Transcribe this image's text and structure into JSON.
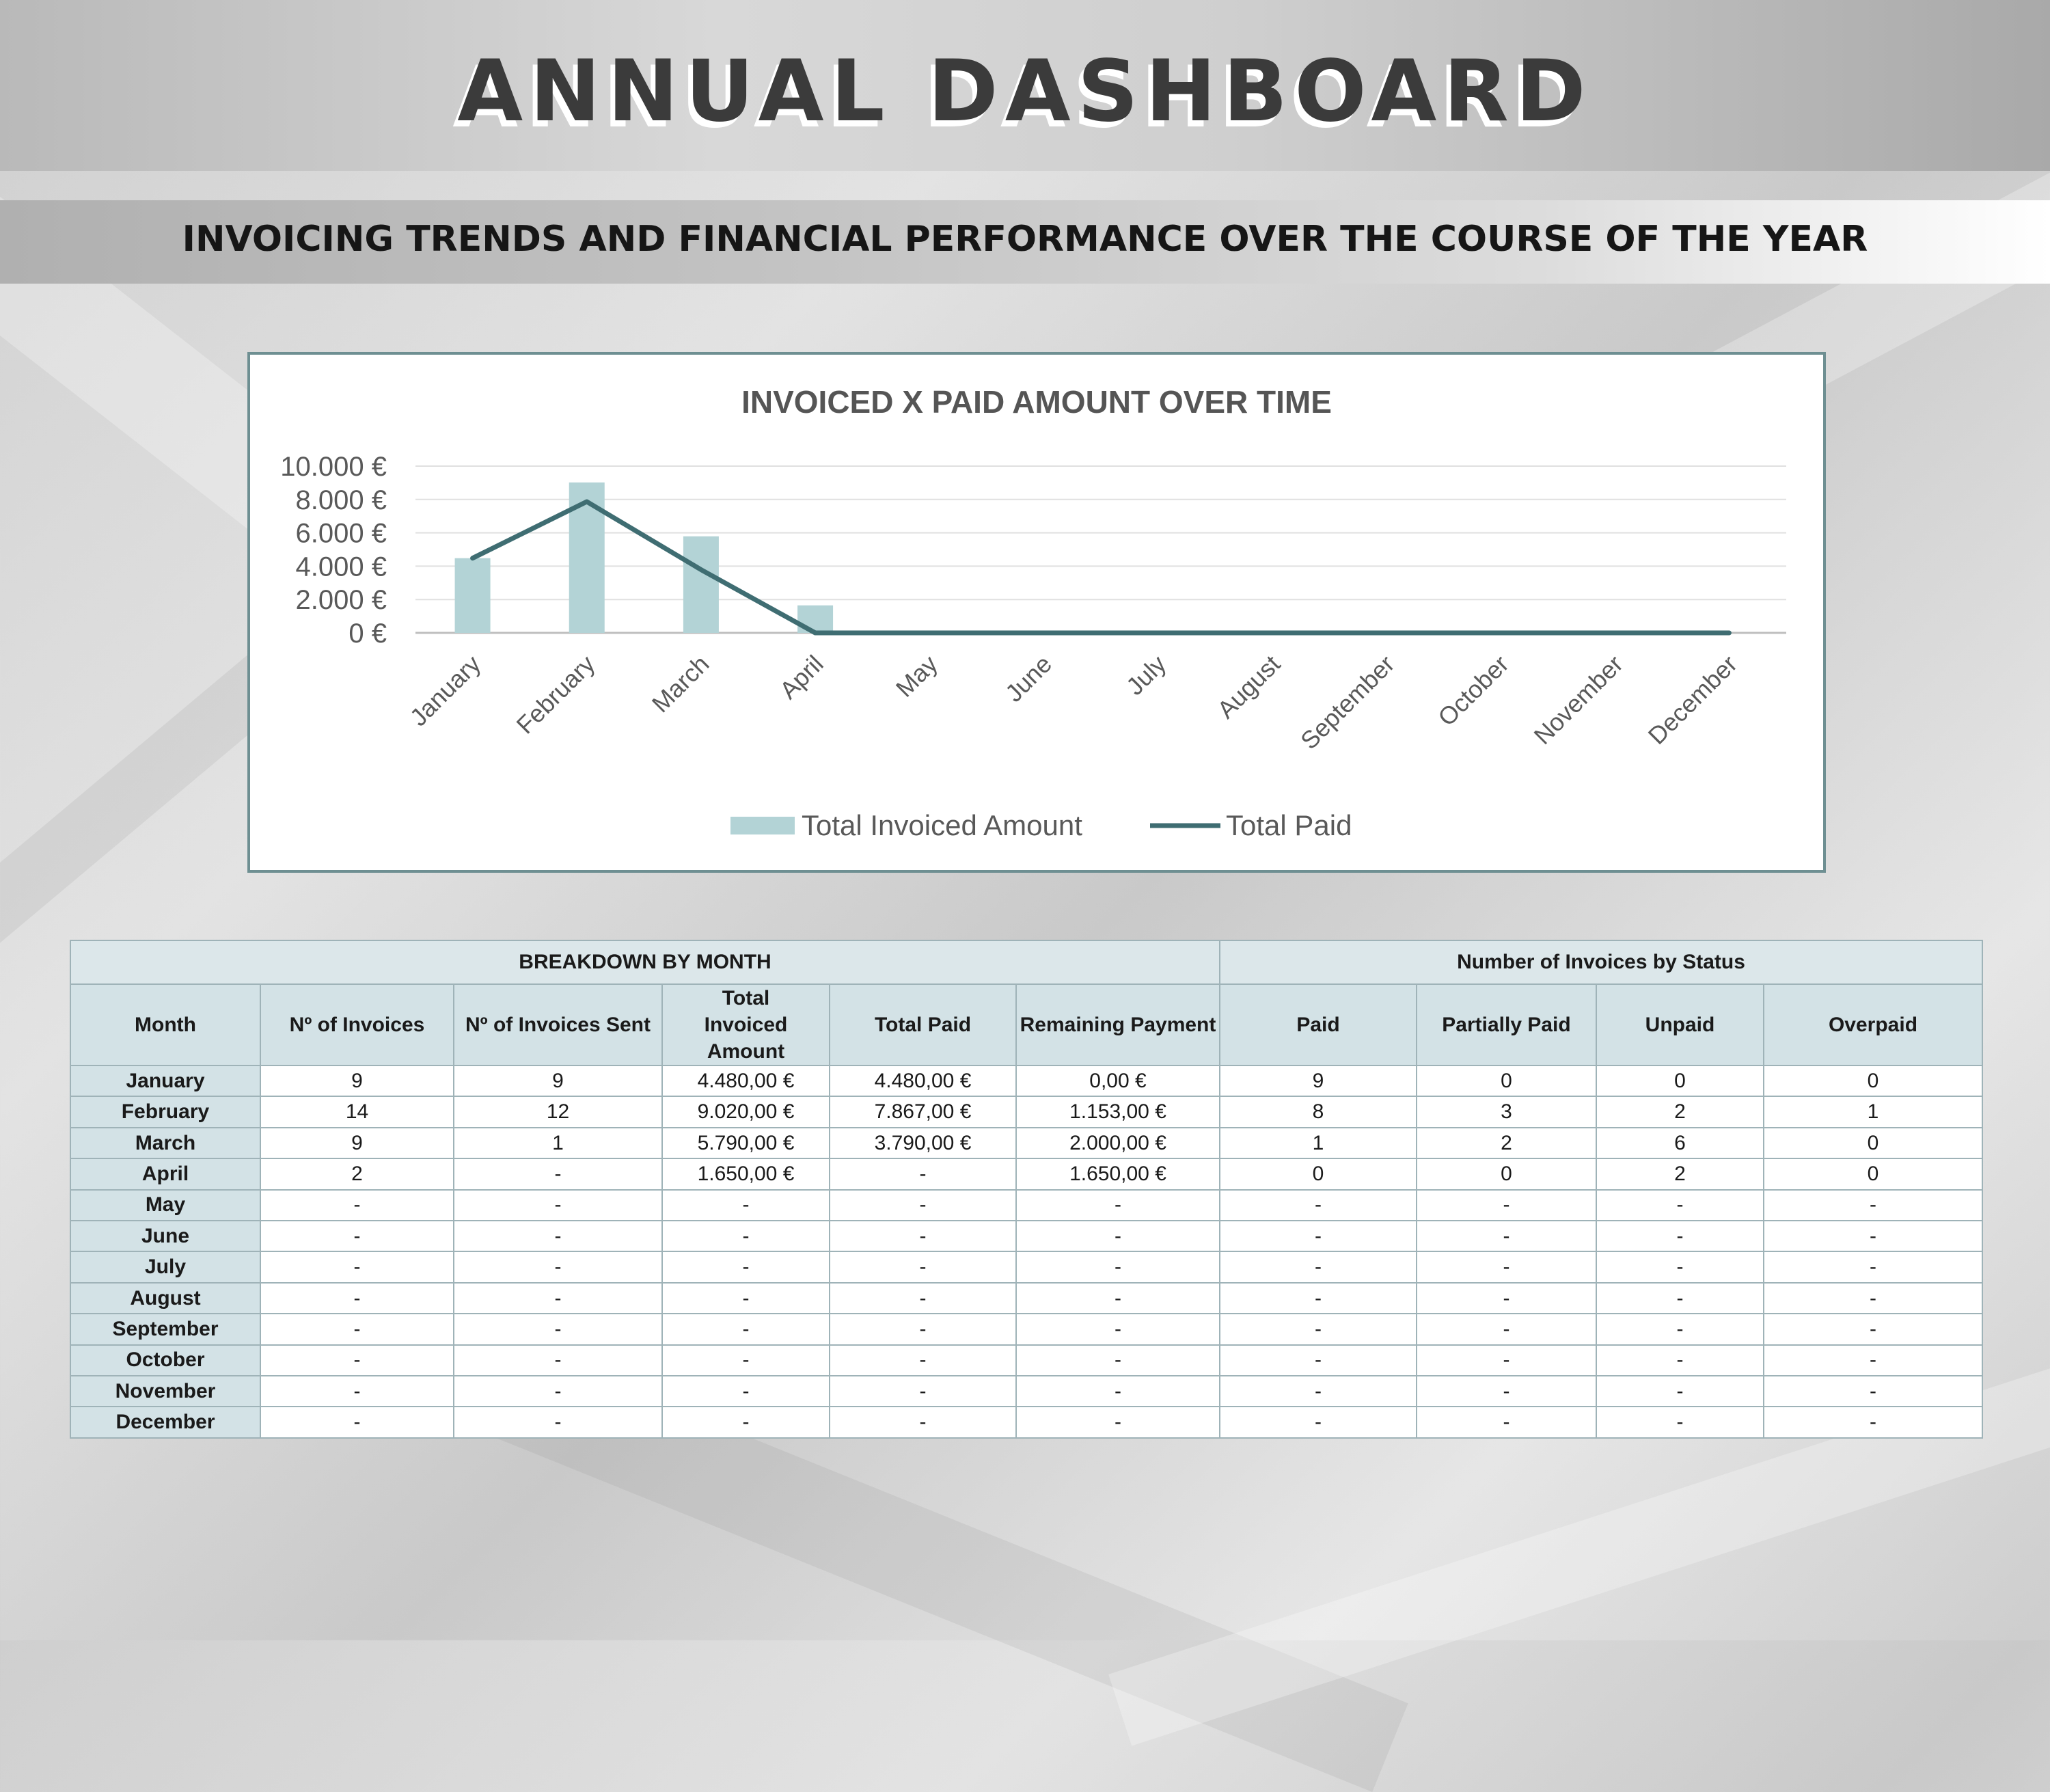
{
  "header": {
    "title": "ANNUAL DASHBOARD",
    "subtitle": "INVOICING TRENDS AND FINANCIAL PERFORMANCE OVER THE COURSE OF THE YEAR"
  },
  "colors": {
    "bar": "#b3d3d6",
    "line": "#3f6d72",
    "header_fill": "#d3e2e6"
  },
  "chart_data": {
    "type": "bar",
    "title": "INVOICED X PAID AMOUNT OVER TIME",
    "categories": [
      "January",
      "February",
      "March",
      "April",
      "May",
      "June",
      "July",
      "August",
      "September",
      "October",
      "November",
      "December"
    ],
    "series": [
      {
        "name": "Total Invoiced Amount",
        "type": "bar",
        "values": [
          4480,
          9020,
          5790,
          1650,
          0,
          0,
          0,
          0,
          0,
          0,
          0,
          0
        ]
      },
      {
        "name": "Total Paid",
        "type": "line",
        "values": [
          4480,
          7867,
          3790,
          0,
          0,
          0,
          0,
          0,
          0,
          0,
          0,
          0
        ]
      }
    ],
    "yticks": [
      "0 €",
      "2.000 €",
      "4.000 €",
      "6.000 €",
      "8.000 €",
      "10.000 €"
    ],
    "ylim": [
      0,
      10000
    ],
    "grid": true,
    "legend": "bottom"
  },
  "table": {
    "group_left": "BREAKDOWN BY MONTH",
    "group_right": "Number of Invoices by Status",
    "columns": [
      "Month",
      "Nº of Invoices",
      "Nº of Invoices Sent",
      "Total Invoiced Amount",
      "Total Paid",
      "Remaining Payment",
      "Paid",
      "Partially Paid",
      "Unpaid",
      "Overpaid"
    ],
    "rows": [
      [
        "January",
        "9",
        "9",
        "4.480,00 €",
        "4.480,00 €",
        "0,00 €",
        "9",
        "0",
        "0",
        "0"
      ],
      [
        "February",
        "14",
        "12",
        "9.020,00 €",
        "7.867,00 €",
        "1.153,00 €",
        "8",
        "3",
        "2",
        "1"
      ],
      [
        "March",
        "9",
        "1",
        "5.790,00 €",
        "3.790,00 €",
        "2.000,00 €",
        "1",
        "2",
        "6",
        "0"
      ],
      [
        "April",
        "2",
        "-",
        "1.650,00 €",
        "-",
        "1.650,00 €",
        "0",
        "0",
        "2",
        "0"
      ],
      [
        "May",
        "-",
        "-",
        "-",
        "-",
        "-",
        "-",
        "-",
        "-",
        "-"
      ],
      [
        "June",
        "-",
        "-",
        "-",
        "-",
        "-",
        "-",
        "-",
        "-",
        "-"
      ],
      [
        "July",
        "-",
        "-",
        "-",
        "-",
        "-",
        "-",
        "-",
        "-",
        "-"
      ],
      [
        "August",
        "-",
        "-",
        "-",
        "-",
        "-",
        "-",
        "-",
        "-",
        "-"
      ],
      [
        "September",
        "-",
        "-",
        "-",
        "-",
        "-",
        "-",
        "-",
        "-",
        "-"
      ],
      [
        "October",
        "-",
        "-",
        "-",
        "-",
        "-",
        "-",
        "-",
        "-",
        "-"
      ],
      [
        "November",
        "-",
        "-",
        "-",
        "-",
        "-",
        "-",
        "-",
        "-",
        "-"
      ],
      [
        "December",
        "-",
        "-",
        "-",
        "-",
        "-",
        "-",
        "-",
        "-",
        "-"
      ]
    ]
  }
}
